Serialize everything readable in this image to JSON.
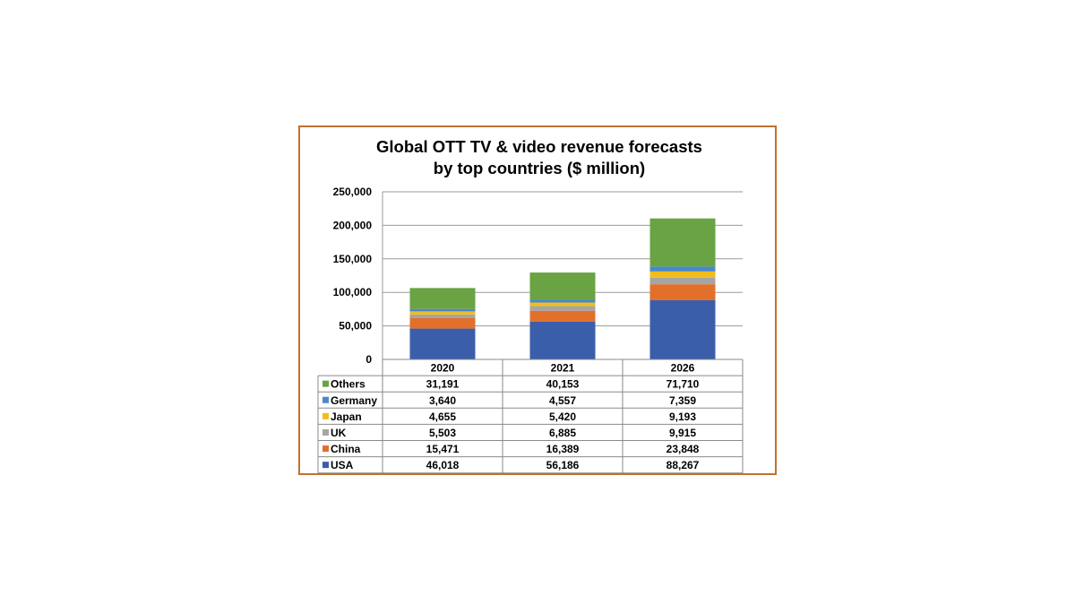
{
  "chart_data": {
    "type": "bar",
    "stacked": true,
    "title_lines": [
      "Global OTT TV & video revenue forecasts",
      "by top countries ($ million)"
    ],
    "xlabel": "",
    "ylabel": "",
    "categories": [
      "2020",
      "2021",
      "2026"
    ],
    "ylim": [
      0,
      250000
    ],
    "yticks": [
      0,
      50000,
      100000,
      150000,
      200000,
      250000
    ],
    "ytick_labels": [
      "0",
      "50,000",
      "100,000",
      "150,000",
      "200,000",
      "250,000"
    ],
    "grid": true,
    "legend": "data-table",
    "series": [
      {
        "name": "USA",
        "color": "#3b5eab",
        "values": [
          46018,
          56186,
          88267
        ],
        "labels": [
          "46,018",
          "56,186",
          "88,267"
        ]
      },
      {
        "name": "China",
        "color": "#e2702b",
        "values": [
          15471,
          16389,
          23848
        ],
        "labels": [
          "15,471",
          "16,389",
          "23,848"
        ]
      },
      {
        "name": "UK",
        "color": "#a5a5a5",
        "values": [
          5503,
          6885,
          9915
        ],
        "labels": [
          "5,503",
          "6,885",
          "9,915"
        ]
      },
      {
        "name": "Japan",
        "color": "#f2bd1b",
        "values": [
          4655,
          5420,
          9193
        ],
        "labels": [
          "4,655",
          "5,420",
          "9,193"
        ]
      },
      {
        "name": "Germany",
        "color": "#4a88c8",
        "values": [
          3640,
          4557,
          7359
        ],
        "labels": [
          "3,640",
          "4,557",
          "7,359"
        ]
      },
      {
        "name": "Others",
        "color": "#6aa343",
        "values": [
          31191,
          40153,
          71710
        ],
        "labels": [
          "31,191",
          "40,153",
          "71,710"
        ]
      }
    ]
  }
}
